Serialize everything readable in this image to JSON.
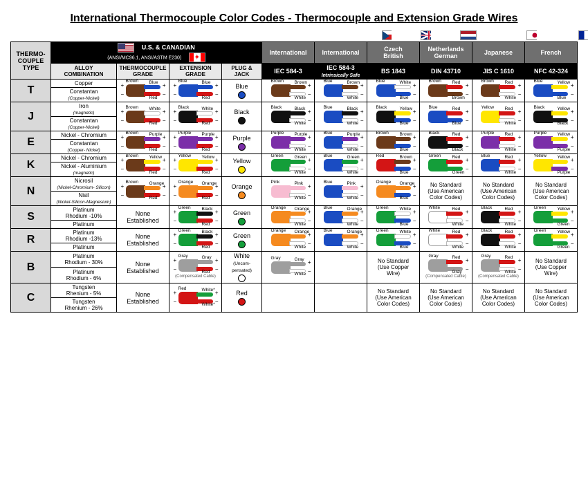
{
  "title": "International Thermocouple Color Codes - Thermocouple and Extension Grade Wires",
  "colors": {
    "Brown": "#6b3a1a",
    "Blue": "#1a4cc2",
    "Red": "#d31515",
    "White": "#ffffff",
    "Black": "#111111",
    "Purple": "#7b2ea8",
    "Yellow": "#ffe600",
    "Green": "#149e3a",
    "Orange": "#f58a1f",
    "Pink": "#f7bcd1",
    "Gray": "#9e9e9e"
  },
  "header": {
    "type": "THERMO-\nCOUPLE\nTYPE",
    "us": {
      "title": "U.S. & CANADIAN",
      "sub": "(ANSI/MC96.1, ANSI/ASTM E230)",
      "cols": [
        "ALLOY\nCOMBINATION",
        "THERMOCOUPLE\nGRADE",
        "EXTENSION\nGRADE",
        "PLUG &\nJACK"
      ]
    },
    "intl": [
      {
        "top": "International",
        "bot": "IEC 584-3"
      },
      {
        "top": "International",
        "bot": "IEC 584-3",
        "botSub": "Intrinsically Safe"
      },
      {
        "top": "Czech\nBritish",
        "bot": "BS 1843"
      },
      {
        "top": "Netherlands\nGerman",
        "bot": "DIN 43710"
      },
      {
        "top": "Japanese",
        "bot": "JIS C 1610"
      },
      {
        "top": "French",
        "bot": "NFC 42-324"
      }
    ]
  },
  "flagRow": [
    "cz",
    "uk",
    "nl de",
    "jp",
    "fr"
  ],
  "nostd_american": "No Standard\n(Use American\nColor Codes)",
  "nostd_copper": "No Standard\n(Use Copper\nWire)",
  "none": "None\nEstablished",
  "comp": "(Compensated Cable)",
  "rows": [
    {
      "type": "T",
      "alloy": [
        "Copper",
        "Constantan|(Copper-Nickel)"
      ],
      "cells": [
        {
          "wire": {
            "j": "Brown",
            "t": "Blue",
            "b": "Red",
            "sign": "lr"
          }
        },
        {
          "wire": {
            "j": "Blue",
            "t": "Blue",
            "b": "Red",
            "sign": "lr"
          }
        },
        {
          "plug": {
            "label": "Blue",
            "color": "#1a4cc2"
          }
        },
        {
          "wire": {
            "j": "Brown",
            "t": "Brown",
            "b": "White",
            "sign": "r"
          }
        },
        {
          "wire": {
            "j": "Blue",
            "t": "Brown",
            "b": "White",
            "sign": "r"
          }
        },
        {
          "wire": {
            "j": "Blue",
            "t": "White",
            "b": "Blue",
            "sign": "r"
          }
        },
        {
          "wire": {
            "j": "Brown",
            "t": "Red",
            "b": "Brown",
            "sign": "r"
          }
        },
        {
          "wire": {
            "j": "Brown",
            "t": "Red",
            "b": "White",
            "sign": "r"
          }
        },
        {
          "wire": {
            "j": "Blue",
            "t": "Yellow",
            "b": "Blue",
            "sign": "r"
          }
        }
      ]
    },
    {
      "type": "J",
      "alloy": [
        "Iron|(magnetic)",
        "Constantan|(Copper-Nickel)"
      ],
      "cells": [
        {
          "wire": {
            "j": "Brown",
            "t": "White",
            "b": "Red",
            "sign": "lr"
          }
        },
        {
          "wire": {
            "j": "Black",
            "t": "White",
            "b": "Red",
            "sign": "lr"
          }
        },
        {
          "plug": {
            "label": "Black",
            "color": "#111111"
          }
        },
        {
          "wire": {
            "j": "Black",
            "t": "Black",
            "b": "White",
            "sign": "r"
          }
        },
        {
          "wire": {
            "j": "Blue",
            "t": "Black",
            "b": "White",
            "sign": "r"
          }
        },
        {
          "wire": {
            "j": "Black",
            "t": "Yellow",
            "b": "Blue",
            "sign": "r"
          }
        },
        {
          "wire": {
            "j": "Blue",
            "t": "Red",
            "b": "Blue",
            "sign": "r"
          }
        },
        {
          "wire": {
            "j": "Yellow",
            "t": "Red",
            "b": "White",
            "sign": "r"
          }
        },
        {
          "wire": {
            "j": "Black",
            "t": "Yellow",
            "b": "Black",
            "sign": "r"
          }
        }
      ]
    },
    {
      "type": "E",
      "alloy": [
        "Nickel - Chromium",
        "Constantan|(Copper- Nickel)"
      ],
      "cells": [
        {
          "wire": {
            "j": "Brown",
            "t": "Purple",
            "b": "Red",
            "sign": "lr"
          }
        },
        {
          "wire": {
            "j": "Purple",
            "t": "Purple",
            "b": "Red",
            "sign": "lr"
          }
        },
        {
          "plug": {
            "label": "Purple",
            "color": "#7b2ea8"
          }
        },
        {
          "wire": {
            "j": "Purple",
            "t": "Purple",
            "b": "White",
            "sign": "r"
          }
        },
        {
          "wire": {
            "j": "Blue",
            "t": "Purple",
            "b": "White",
            "sign": "r"
          }
        },
        {
          "wire": {
            "j": "Brown",
            "t": "Brown",
            "b": "Blue",
            "sign": "r"
          }
        },
        {
          "wire": {
            "j": "Black",
            "t": "Red",
            "b": "Black",
            "sign": "r"
          }
        },
        {
          "wire": {
            "j": "Purple",
            "t": "Red",
            "b": "White",
            "sign": "r"
          }
        },
        {
          "wire": {
            "j": "Purple",
            "t": "Yellow",
            "b": "Purple",
            "sign": "r"
          }
        }
      ]
    },
    {
      "type": "K",
      "alloy": [
        "Nickel - Chromium",
        "Nickel - Aluminium|(magnetic)"
      ],
      "cells": [
        {
          "wire": {
            "j": "Brown",
            "t": "Yellow",
            "b": "Red",
            "sign": "lr"
          }
        },
        {
          "wire": {
            "j": "Yellow",
            "t": "Yellow",
            "b": "Red",
            "sign": "lr"
          }
        },
        {
          "plug": {
            "label": "Yellow",
            "color": "#ffe600"
          }
        },
        {
          "wire": {
            "j": "Green",
            "t": "Green",
            "b": "White",
            "sign": "r"
          }
        },
        {
          "wire": {
            "j": "Blue",
            "t": "Green",
            "b": "White",
            "sign": "r"
          }
        },
        {
          "wire": {
            "j": "Red",
            "t": "Brown",
            "b": "Blue",
            "sign": "r"
          }
        },
        {
          "wire": {
            "j": "Green",
            "t": "Red",
            "b": "Green",
            "sign": "r"
          }
        },
        {
          "wire": {
            "j": "Blue",
            "t": "Red",
            "b": "White",
            "sign": "r"
          }
        },
        {
          "wire": {
            "j": "Yellow",
            "t": "Yellow",
            "b": "Purple",
            "sign": "r"
          }
        }
      ]
    },
    {
      "type": "N",
      "alloy": [
        "Nicrosil|(Nickel-Chromium- Silicon)",
        "Nisil|(Nickel-Silicon-Magnesium)"
      ],
      "cells": [
        {
          "wire": {
            "j": "Brown",
            "t": "Orange",
            "b": "Red",
            "sign": "lr"
          }
        },
        {
          "wire": {
            "j": "Orange",
            "t": "Orange",
            "b": "Red",
            "sign": "lr"
          }
        },
        {
          "plug": {
            "label": "Orange",
            "color": "#f58a1f"
          }
        },
        {
          "wire": {
            "j": "Pink",
            "t": "Pink",
            "b": "White",
            "sign": "r"
          }
        },
        {
          "wire": {
            "j": "Blue",
            "t": "Pink",
            "b": "White",
            "sign": "r"
          }
        },
        {
          "wire": {
            "j": "Orange",
            "t": "Orange",
            "b": "Blue",
            "sign": "r"
          }
        },
        {
          "nostd": "american"
        },
        {
          "nostd": "american"
        },
        {
          "nostd": "american"
        }
      ]
    },
    {
      "type": "S",
      "alloy": [
        "Platinum\nRhodium -10%",
        "Platinum"
      ],
      "noneEst": true,
      "cells": [
        null,
        {
          "wire": {
            "j": "Green",
            "t": "Black",
            "b": "Red",
            "sign": "lr"
          }
        },
        {
          "plug": {
            "label": "Green",
            "color": "#149e3a"
          }
        },
        {
          "wire": {
            "j": "Orange",
            "t": "Orange",
            "b": "White",
            "sign": "r"
          }
        },
        {
          "wire": {
            "j": "Blue",
            "t": "Orange",
            "b": "White",
            "sign": "r"
          }
        },
        {
          "wire": {
            "j": "Green",
            "t": "White",
            "b": "Blue",
            "sign": "r"
          }
        },
        {
          "wire": {
            "j": "White",
            "t": "Red",
            "b": "White",
            "sign": "r"
          }
        },
        {
          "wire": {
            "j": "Black",
            "t": "Red",
            "b": "White",
            "sign": "r"
          }
        },
        {
          "wire": {
            "j": "Green",
            "t": "Yellow",
            "b": "Green",
            "sign": "r"
          }
        }
      ]
    },
    {
      "type": "R",
      "alloy": [
        "Platinum\nRhodium -13%",
        "Platinum"
      ],
      "noneEst": true,
      "cells": [
        null,
        {
          "wire": {
            "j": "Green",
            "t": "Black",
            "b": "Red",
            "sign": "lr"
          }
        },
        {
          "plug": {
            "label": "Green",
            "color": "#149e3a"
          }
        },
        {
          "wire": {
            "j": "Orange",
            "t": "Orange",
            "b": "White",
            "sign": "r"
          }
        },
        {
          "wire": {
            "j": "Blue",
            "t": "Orange",
            "b": "White",
            "sign": "r"
          }
        },
        {
          "wire": {
            "j": "Green",
            "t": "White",
            "b": "Blue",
            "sign": "r"
          }
        },
        {
          "wire": {
            "j": "White",
            "t": "Red",
            "b": "White",
            "sign": "r"
          }
        },
        {
          "wire": {
            "j": "Black",
            "t": "Red",
            "b": "White",
            "sign": "r"
          }
        },
        {
          "wire": {
            "j": "Green",
            "t": "Yellow",
            "b": "Green",
            "sign": "r"
          }
        }
      ]
    },
    {
      "type": "B",
      "alloy": [
        "Platinum\nRhodium - 30%",
        "Platinum\nRhodium - 6%"
      ],
      "noneEst": true,
      "cells": [
        null,
        {
          "wire": {
            "j": "Gray",
            "t": "Gray",
            "b": "Red",
            "sign": "lr",
            "comp": true
          }
        },
        {
          "plug": {
            "label": "White",
            "sub": "(Uncom-\npensated)",
            "color": "#ffffff",
            "border": true
          }
        },
        {
          "wire": {
            "j": "Gray",
            "t": "Gray",
            "b": "White",
            "sign": "r"
          }
        },
        {
          "empty": true
        },
        {
          "nostd": "copper"
        },
        {
          "wire": {
            "j": "Gray",
            "t": "Red",
            "b": "Gray",
            "sign": "r",
            "comp": true
          }
        },
        {
          "wire": {
            "j": "Gray",
            "t": "Red",
            "b": "White",
            "sign": "r",
            "comp": true
          }
        },
        {
          "nostd": "copper"
        }
      ]
    },
    {
      "type": "C",
      "alloy": [
        "Tungsten\nRhenium - 5%",
        "Tungsten\nRhenium - 26%"
      ],
      "noneEst": true,
      "cells": [
        null,
        {
          "wire": {
            "j": "Red",
            "t": "Green",
            "b": "Red",
            "tlabel": "White*",
            "blabel": "White*",
            "sign": "lr"
          }
        },
        {
          "plug": {
            "label": "Red",
            "color": "#d31515"
          }
        },
        {
          "empty": true
        },
        {
          "empty": true
        },
        {
          "nostd": "american"
        },
        {
          "nostd": "american"
        },
        {
          "nostd": "american"
        },
        {
          "nostd": "american"
        }
      ]
    }
  ]
}
